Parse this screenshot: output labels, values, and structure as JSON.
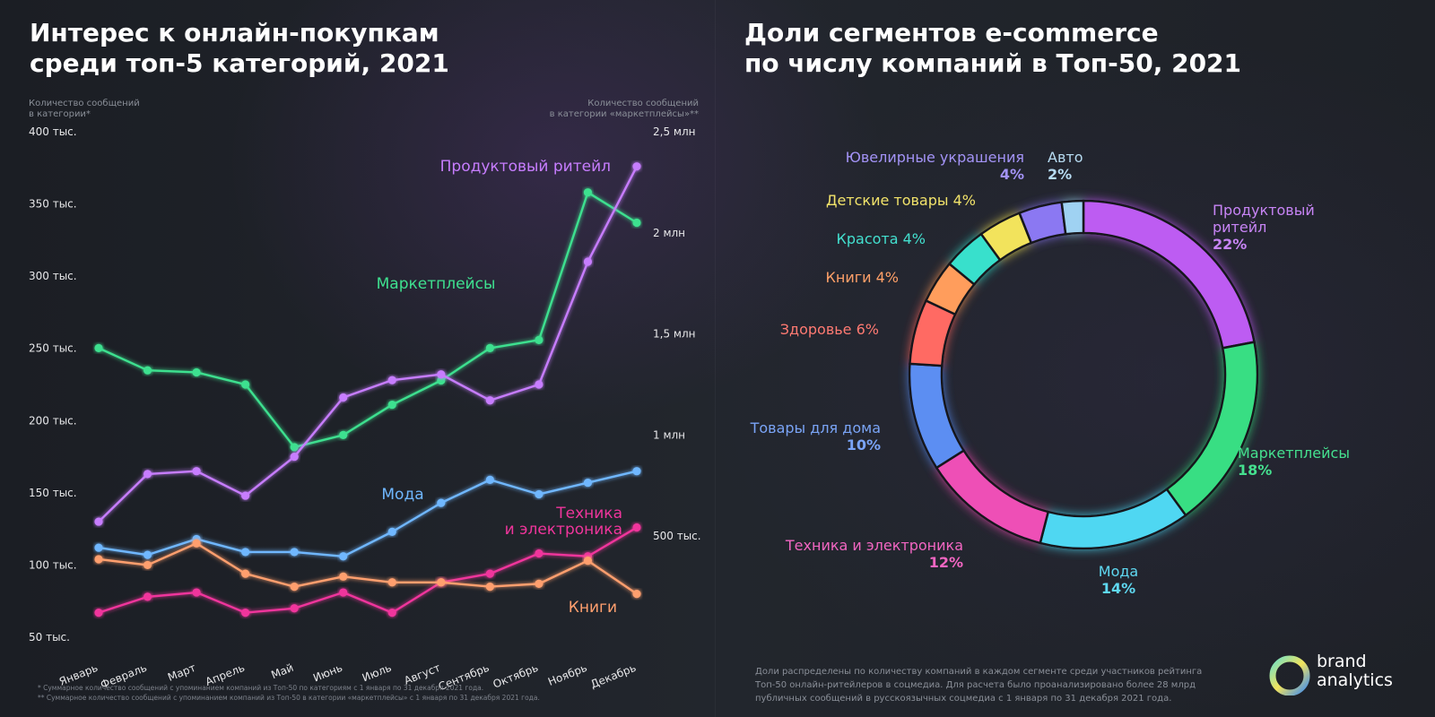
{
  "left_title": [
    "Интерес к онлайн-покупкам",
    "среди топ-5 категорий, 2021"
  ],
  "right_title": [
    "Доли сегментов e-commerce",
    "по числу компаний в Топ-50, 2021"
  ],
  "left_axis_caption": [
    "Количество сообщений",
    "в категории*"
  ],
  "right_axis_caption": [
    "Количество сообщений",
    "в категории «маркетплейсы»**"
  ],
  "footnotes": [
    "*    Суммарное количество сообщений с упоминанием компаний из Топ-50 по категориям  с 1 января по 31 декабря 2021 года.",
    "**   Суммарное количество сообщений с упоминанием компаний из Топ-50 в категории «маркетплейсы» с 1 января по 31 декабря 2021 года."
  ],
  "donut_note": [
    "Доли распределены по количеству компаний в каждом сегменте среди участников рейтинга",
    "Топ-50 онлайн-ритейлеров в соцмедиа. Для расчета было проанализировано более 28 млрд",
    "публичных сообщений в русскоязычных соцмедиа с 1 января по 31 декабря 2021 года."
  ],
  "brand": {
    "line1": "brand",
    "line2": "analytics"
  },
  "chart_data": [
    {
      "type": "line",
      "title": "Интерес к онлайн-покупкам среди топ-5 категорий, 2021",
      "xlabel": "",
      "ylabel": "Количество сообщений в категории*",
      "y2label": "Количество сообщений в категории «маркетплейсы»**",
      "categories": [
        "Январь",
        "Февраль",
        "Март",
        "Апрель",
        "Май",
        "Июнь",
        "Июль",
        "Август",
        "Сентябрь",
        "Октябрь",
        "Ноябрь",
        "Декабрь"
      ],
      "ylim": [
        50000,
        400000
      ],
      "y_ticks": [
        {
          "value": 400000,
          "label": "400 тыс."
        },
        {
          "value": 350000,
          "label": "350 тыс."
        },
        {
          "value": 300000,
          "label": "300 тыс."
        },
        {
          "value": 250000,
          "label": "250 тыс."
        },
        {
          "value": 200000,
          "label": "200 тыс."
        },
        {
          "value": 150000,
          "label": "150 тыс."
        },
        {
          "value": 100000,
          "label": "100 тыс."
        },
        {
          "value": 50000,
          "label": "50 тыс."
        }
      ],
      "y2lim": [
        0,
        2500000
      ],
      "y2_ticks": [
        {
          "value": 2500000,
          "label": "2,5 млн"
        },
        {
          "value": 2000000,
          "label": "2 млн"
        },
        {
          "value": 1500000,
          "label": "1,5 млн"
        },
        {
          "value": 1000000,
          "label": "1 млн"
        },
        {
          "value": 500000,
          "label": "500 тыс."
        }
      ],
      "grid": false,
      "series": [
        {
          "name": "Маркетплейсы",
          "axis": "right",
          "color": "#3ee08f",
          "values": [
            1430000,
            1320000,
            1310000,
            1250000,
            940000,
            1000000,
            1150000,
            1270000,
            1430000,
            1470000,
            2200000,
            2050000
          ]
        },
        {
          "name": "Продуктовый ритейл",
          "axis": "left",
          "color": "#c77dff",
          "values": [
            130000,
            163000,
            165000,
            148000,
            175000,
            216000,
            228000,
            232000,
            214000,
            225000,
            310000,
            376000
          ]
        },
        {
          "name": "Мода",
          "axis": "left",
          "color": "#6fb7ff",
          "values": [
            112000,
            107000,
            118000,
            109000,
            109000,
            106000,
            123000,
            143000,
            159000,
            149000,
            157000,
            165000
          ]
        },
        {
          "name": "Техника и электроника",
          "axis": "left",
          "color": "#f0359c",
          "values": [
            67000,
            78000,
            81000,
            67000,
            70000,
            81000,
            67000,
            88000,
            94000,
            108000,
            106000,
            126000
          ]
        },
        {
          "name": "Книги",
          "axis": "left",
          "color": "#ff9f6e",
          "values": [
            104000,
            100000,
            115000,
            94000,
            85000,
            92000,
            88000,
            88000,
            85000,
            87000,
            103000,
            80000
          ]
        }
      ],
      "series_labels": [
        {
          "series": "Маркетплейсы",
          "text": [
            "Маркетплейсы"
          ]
        },
        {
          "series": "Продуктовый ритейл",
          "text": [
            "Продуктовый ритейл"
          ]
        },
        {
          "series": "Мода",
          "text": [
            "Мода"
          ]
        },
        {
          "series": "Техника и электроника",
          "text": [
            "Техника",
            "и электроника"
          ]
        },
        {
          "series": "Книги",
          "text": [
            "Книги"
          ]
        }
      ]
    },
    {
      "type": "pie",
      "variant": "donut",
      "title": "Доли сегментов e-commerce по числу компаний в Топ-50, 2021",
      "slices": [
        {
          "label": "Продуктовый ритейл",
          "value": 22,
          "color": "#bd5cf2",
          "label_color": "#c784f5",
          "pct": "22%",
          "lines": [
            "Продуктовый",
            "ритейл",
            "22%"
          ]
        },
        {
          "label": "Маркетплейсы",
          "value": 18,
          "color": "#39de83",
          "label_color": "#45e08f",
          "pct": "18%",
          "lines": [
            "Маркетплейсы",
            "18%"
          ]
        },
        {
          "label": "Мода",
          "value": 14,
          "color": "#4fd7f2",
          "label_color": "#5fd9f2",
          "pct": "14%",
          "lines": [
            "Мода",
            "14%"
          ]
        },
        {
          "label": "Техника и электроника",
          "value": 12,
          "color": "#ee4fb6",
          "label_color": "#f266c2",
          "pct": "12%",
          "lines": [
            "Техника и электроника",
            "12%"
          ]
        },
        {
          "label": "Товары для дома",
          "value": 10,
          "color": "#5c8ef2",
          "label_color": "#7aa4f6",
          "pct": "10%",
          "lines": [
            "Товары для дома",
            "10%"
          ]
        },
        {
          "label": "Здоровье",
          "value": 6,
          "color": "#ff6b64",
          "label_color": "#ff7a72",
          "pct": "6%",
          "lines": [
            "Здоровье 6%"
          ]
        },
        {
          "label": "Книги",
          "value": 4,
          "color": "#ff9d5c",
          "label_color": "#ffa068",
          "pct": "4%",
          "lines": [
            "Книги 4%"
          ]
        },
        {
          "label": "Красота",
          "value": 4,
          "color": "#38e0cc",
          "label_color": "#43e0cf",
          "pct": "4%",
          "lines": [
            "Красота 4%"
          ]
        },
        {
          "label": "Детские товары",
          "value": 4,
          "color": "#f2e35c",
          "label_color": "#f2e36a",
          "pct": "4%",
          "lines": [
            "Детские товары 4%"
          ]
        },
        {
          "label": "Ювелирные украшения",
          "value": 4,
          "color": "#8b78f2",
          "label_color": "#a393f6",
          "pct": "4%",
          "lines": [
            "Ювелирные украшения",
            "4%"
          ]
        },
        {
          "label": "Авто",
          "value": 2,
          "color": "#9fd2f2",
          "label_color": "#b7dcf2",
          "pct": "2%",
          "lines": [
            "Авто",
            "2%"
          ]
        }
      ]
    }
  ]
}
